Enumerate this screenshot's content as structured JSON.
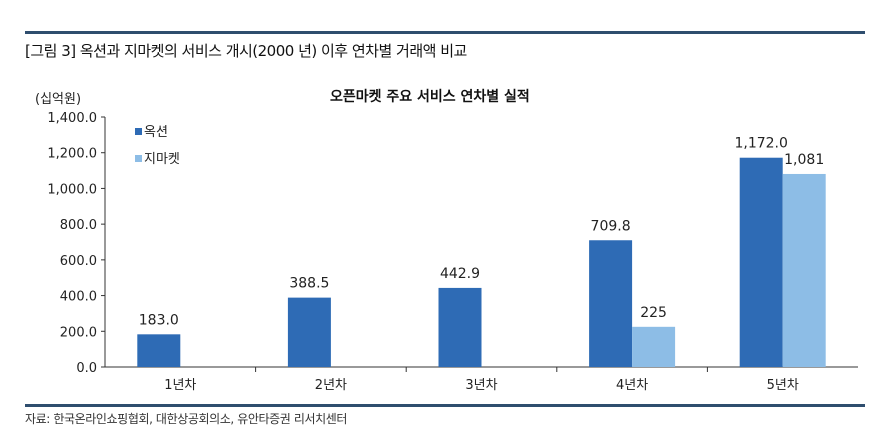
{
  "figure_title": "[그림 3] 옥션과 지마켓의 서비스 개시(2000 년) 이후 연차별 거래액 비교",
  "source": "자료: 한국온라인쇼핑협회, 대한상공회의소, 유안타증권 리서치센터",
  "chart_data": {
    "type": "bar",
    "title": "오픈마켓 주요 서비스 연차별 실적",
    "ylabel": "(십억원)",
    "xlabel": "",
    "categories": [
      "1년차",
      "2년차",
      "3년차",
      "4년차",
      "5년차"
    ],
    "ylim": [
      0,
      1400
    ],
    "yticks": [
      "0.0",
      "200.0",
      "400.0",
      "600.0",
      "800.0",
      "1,000.0",
      "1,200.0",
      "1,400.0"
    ],
    "grid": false,
    "legend": "top-left",
    "series": [
      {
        "name": "옥션",
        "color": "#2e6bb5",
        "values": [
          183.0,
          388.5,
          442.9,
          709.8,
          1172.0
        ],
        "labels": [
          "183.0",
          "388.5",
          "442.9",
          "709.8",
          "1,172.0"
        ]
      },
      {
        "name": "지마켓",
        "color": "#8dbde6",
        "values": [
          null,
          null,
          null,
          225,
          1081
        ],
        "labels": [
          "",
          "",
          "",
          "225",
          "1,081"
        ]
      }
    ]
  }
}
